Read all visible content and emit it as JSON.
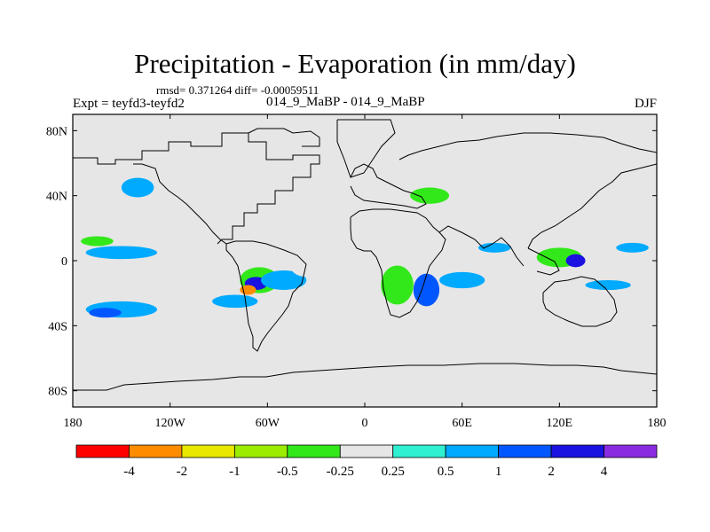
{
  "title": "Precipitation - Evaporation (in mm/day)",
  "stats": "rmsd= 0.371264 diff= -0.00059511",
  "experiment": "Expt = teyfd3-teyfd2",
  "comparison": "014_9_MaBP - 014_9_MaBP",
  "season": "DJF",
  "colors": {
    "ocean": "#e6e6e6",
    "outline": "#000000"
  },
  "chart_data": {
    "type": "heatmap",
    "title": "Precipitation - Evaporation (in mm/day)",
    "x_axis": {
      "range": [
        -180,
        180
      ],
      "tick_labels": [
        "180",
        "120W",
        "60W",
        "0",
        "60E",
        "120E",
        "180"
      ],
      "tick_values": [
        -180,
        -120,
        -60,
        0,
        60,
        120,
        180
      ]
    },
    "y_axis": {
      "range": [
        -90,
        90
      ],
      "tick_labels": [
        "80N",
        "40N",
        "0",
        "40S",
        "80S"
      ],
      "tick_values": [
        80,
        40,
        0,
        -40,
        -80
      ]
    },
    "colorbar": {
      "colors": [
        "#ff0000",
        "#ff8c00",
        "#e8e800",
        "#9bec00",
        "#33e81a",
        "#e6e6e6",
        "#2ff0d0",
        "#00aaff",
        "#0057ff",
        "#1a12e0",
        "#8a2be2"
      ],
      "labels": [
        "-4",
        "-2",
        "-1",
        "-0.5",
        "-0.25",
        "0.25",
        "0.5",
        "1",
        "2",
        "4"
      ]
    },
    "anomaly_regions": [
      {
        "lon": -150,
        "lat": -30,
        "rlon": 22,
        "rlat": 5,
        "value": 0.5
      },
      {
        "lon": -160,
        "lat": -32,
        "rlon": 10,
        "rlat": 3,
        "value": 1
      },
      {
        "lon": -80,
        "lat": -25,
        "rlon": 14,
        "rlat": 4,
        "value": 0.5
      },
      {
        "lon": -150,
        "lat": 5,
        "rlon": 22,
        "rlat": 4,
        "value": 0.5
      },
      {
        "lon": -165,
        "lat": 12,
        "rlon": 10,
        "rlat": 3,
        "value": -0.5
      },
      {
        "lon": -125,
        "lat": 12,
        "rlon": 10,
        "rlat": 3,
        "value": -0.25
      },
      {
        "lon": -140,
        "lat": 45,
        "rlon": 10,
        "rlat": 6,
        "value": 0.5
      },
      {
        "lon": -165,
        "lat": 40,
        "rlon": 6,
        "rlat": 3,
        "value": -0.25
      },
      {
        "lon": -65,
        "lat": -12,
        "rlon": 12,
        "rlat": 8,
        "value": -0.5
      },
      {
        "lon": -67,
        "lat": -14,
        "rlon": 7,
        "rlat": 4,
        "value": 2
      },
      {
        "lon": -72,
        "lat": -18,
        "rlon": 5,
        "rlat": 3,
        "value": -4
      },
      {
        "lon": -50,
        "lat": -12,
        "rlon": 14,
        "rlat": 6,
        "value": 0.5
      },
      {
        "lon": -35,
        "lat": -5,
        "rlon": 10,
        "rlat": 5,
        "value": -0.25
      },
      {
        "lon": 20,
        "lat": -15,
        "rlon": 10,
        "rlat": 12,
        "value": -0.5
      },
      {
        "lon": 38,
        "lat": -18,
        "rlon": 8,
        "rlat": 10,
        "value": 1
      },
      {
        "lon": 60,
        "lat": -12,
        "rlon": 14,
        "rlat": 5,
        "value": 0.5
      },
      {
        "lon": 82,
        "lat": -5,
        "rlon": 10,
        "rlat": 4,
        "value": -0.25
      },
      {
        "lon": 120,
        "lat": 2,
        "rlon": 14,
        "rlat": 6,
        "value": -0.5
      },
      {
        "lon": 130,
        "lat": 0,
        "rlon": 6,
        "rlat": 4,
        "value": 2
      },
      {
        "lon": 150,
        "lat": -15,
        "rlon": 14,
        "rlat": 3,
        "value": 0.5
      },
      {
        "lon": 165,
        "lat": 8,
        "rlon": 10,
        "rlat": 3,
        "value": 0.5
      },
      {
        "lon": 40,
        "lat": 40,
        "rlon": 12,
        "rlat": 5,
        "value": -0.5
      },
      {
        "lon": 115,
        "lat": 25,
        "rlon": 10,
        "rlat": 5,
        "value": -0.25
      },
      {
        "lon": 80,
        "lat": 8,
        "rlon": 10,
        "rlat": 3,
        "value": 0.5
      }
    ]
  }
}
